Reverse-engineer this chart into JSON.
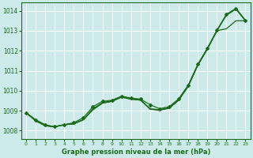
{
  "x": [
    0,
    1,
    2,
    3,
    4,
    5,
    6,
    7,
    8,
    9,
    10,
    11,
    12,
    13,
    14,
    15,
    16,
    17,
    18,
    19,
    20,
    21,
    22,
    23
  ],
  "line1": [
    1008.9,
    1008.5,
    1008.25,
    1008.2,
    1008.3,
    1008.35,
    1008.55,
    1009.1,
    1009.4,
    1009.5,
    1009.7,
    1009.6,
    1009.55,
    1009.1,
    1009.05,
    1009.15,
    1009.55,
    1010.25,
    1011.3,
    1012.1,
    1013.0,
    1013.8,
    1014.1,
    1013.5
  ],
  "line2": [
    1008.9,
    1008.5,
    1008.25,
    1008.2,
    1008.3,
    1008.35,
    1008.55,
    1009.05,
    1009.38,
    1009.47,
    1009.68,
    1009.58,
    1009.53,
    1009.08,
    1009.03,
    1009.13,
    1009.53,
    1010.23,
    1011.28,
    1012.08,
    1013.0,
    1013.78,
    1014.08,
    1013.5
  ],
  "line3": [
    1008.9,
    1008.5,
    1008.25,
    1008.2,
    1008.3,
    1008.35,
    1008.55,
    1009.05,
    1009.38,
    1009.47,
    1009.68,
    1009.58,
    1009.53,
    1009.08,
    1009.03,
    1009.13,
    1009.53,
    1010.23,
    1011.28,
    1012.08,
    1013.0,
    1013.1,
    1013.5,
    1013.5
  ],
  "line4_with_markers": [
    1008.9,
    1008.55,
    1008.3,
    1008.2,
    1008.3,
    1008.4,
    1008.65,
    1009.2,
    1009.47,
    1009.52,
    1009.73,
    1009.63,
    1009.58,
    1009.3,
    1009.1,
    1009.2,
    1009.6,
    1010.28,
    1011.32,
    1012.12,
    1013.02,
    1013.82,
    1014.12,
    1013.52
  ],
  "bg_color": "#cceaea",
  "grid_color": "#ffffff",
  "line_color": "#1a6b1a",
  "text_color": "#1a6b1a",
  "xlabel": "Graphe pression niveau de la mer (hPa)",
  "ylim": [
    1007.6,
    1014.4
  ],
  "xlim": [
    -0.5,
    23.5
  ],
  "xticks": [
    0,
    1,
    2,
    3,
    4,
    5,
    6,
    7,
    8,
    9,
    10,
    11,
    12,
    13,
    14,
    15,
    16,
    17,
    18,
    19,
    20,
    21,
    22,
    23
  ],
  "yticks": [
    1008,
    1009,
    1010,
    1011,
    1012,
    1013,
    1014
  ]
}
